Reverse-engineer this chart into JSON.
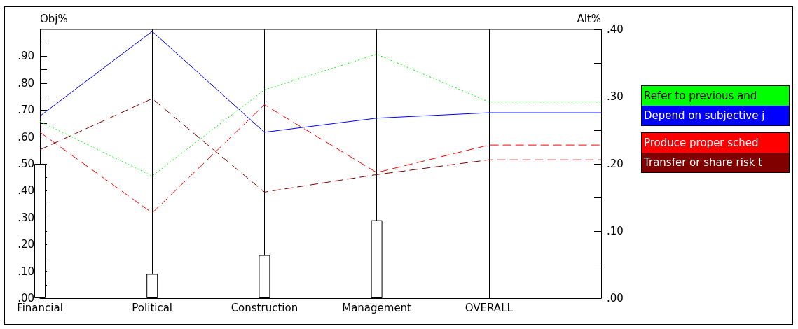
{
  "chart_data": {
    "type": "line",
    "ylabel": "Obj%",
    "y2label": "Alt%",
    "categories": [
      "Financial",
      "Political",
      "Construction",
      "Management",
      "OVERALL",
      null
    ],
    "ylim": [
      0,
      1
    ],
    "yticks": [
      {
        "value": 0,
        "label": ".00"
      },
      {
        "value": 0.05,
        "label": null
      },
      {
        "value": 0.1,
        "label": ".10"
      },
      {
        "value": 0.15,
        "label": null
      },
      {
        "value": 0.2,
        "label": ".20"
      },
      {
        "value": 0.25,
        "label": null
      },
      {
        "value": 0.3,
        "label": ".30"
      },
      {
        "value": 0.35,
        "label": null
      },
      {
        "value": 0.4,
        "label": ".40"
      },
      {
        "value": 0.45,
        "label": null
      },
      {
        "value": 0.5,
        "label": ".50"
      },
      {
        "value": 0.55,
        "label": null
      },
      {
        "value": 0.6,
        "label": ".60"
      },
      {
        "value": 0.65,
        "label": null
      },
      {
        "value": 0.7,
        "label": ".70"
      },
      {
        "value": 0.75,
        "label": null
      },
      {
        "value": 0.8,
        "label": ".80"
      },
      {
        "value": 0.85,
        "label": null
      },
      {
        "value": 0.9,
        "label": ".90"
      },
      {
        "value": 0.95,
        "label": null
      }
    ],
    "y2lim": [
      0,
      0.4
    ],
    "y2ticks": [
      {
        "value": 0,
        "label": ".00"
      },
      {
        "value": 0.05,
        "label": null
      },
      {
        "value": 0.1,
        "label": ".10"
      },
      {
        "value": 0.15,
        "label": null
      },
      {
        "value": 0.2,
        "label": ".20"
      },
      {
        "value": 0.25,
        "label": null
      },
      {
        "value": 0.3,
        "label": ".30"
      },
      {
        "value": 0.35,
        "label": null
      },
      {
        "value": 0.4,
        "label": ".40"
      }
    ],
    "grid": "x",
    "legend": "right",
    "marker": "none",
    "series": [
      {
        "type": "bar",
        "color": "#ffffff",
        "values": [
          0.5,
          0.09,
          0.16,
          0.29,
          null,
          null
        ]
      },
      {
        "name": "Refer to previous and",
        "color": "#00ff00",
        "axis": "y2",
        "line_style": "dotted",
        "values": [
          0.263,
          0.182,
          0.31,
          0.363,
          0.292,
          0.292
        ]
      },
      {
        "name": "Depend on subjective j",
        "color": "#0000ff",
        "axis": "y2",
        "line_style": "solid",
        "values": [
          0.271,
          0.397,
          0.247,
          0.268,
          0.276,
          0.276
        ]
      },
      {
        "name": "Produce proper sched",
        "color": "#ff0000",
        "axis": "y2",
        "line_style": "dashed",
        "values": [
          0.247,
          0.127,
          0.288,
          0.187,
          0.228,
          0.228
        ]
      },
      {
        "name": "Transfer or share risk t",
        "color": "#800000",
        "axis": "y2",
        "line_style": "dashed",
        "values": [
          0.221,
          0.297,
          0.158,
          0.184,
          0.206,
          0.206
        ]
      }
    ]
  }
}
